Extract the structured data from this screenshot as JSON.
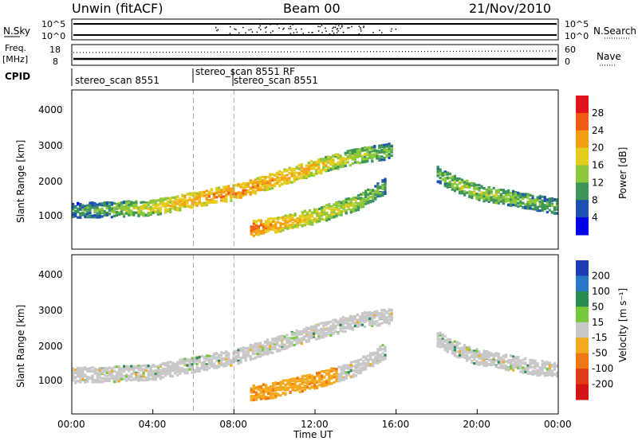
{
  "header": {
    "site": "Unwin (fitACF)",
    "beam": "Beam 00",
    "date": "21/Nov/2010"
  },
  "nsky_panel": {
    "left_label": "N.Sky",
    "right_label": "N.Search",
    "left_ticks": [
      "10^5",
      "10^0"
    ],
    "right_ticks": [
      "10^5",
      "10^0"
    ]
  },
  "freq_panel": {
    "left_label_line1": "Freq.",
    "left_label_line2": "[MHz]",
    "right_label": "Nave",
    "left_ticks": [
      "18",
      "8"
    ],
    "right_ticks": [
      "60",
      "0"
    ]
  },
  "cpid": {
    "label": "CPID",
    "segments": [
      {
        "start_hour": 0,
        "name": "stereo_scan 8551"
      },
      {
        "start_hour": 6,
        "name": "stereo_scan 8551 RF"
      },
      {
        "start_hour": 8,
        "name": "stereo_scan 8551"
      }
    ]
  },
  "chart_data": [
    {
      "type": "heatmap",
      "title": "",
      "xlabel": "",
      "ylabel": "Slant Range [km]",
      "yticks": [
        "1000",
        "2000",
        "3000",
        "4000"
      ],
      "ylim": [
        200,
        4600
      ],
      "xlim_hours": [
        0,
        24
      ],
      "colorbar_label": "Power [dB]",
      "colorbar_ticks": [
        "28",
        "24",
        "20",
        "16",
        "12",
        "8",
        "4"
      ],
      "colorbar_colors": [
        "#e0141e",
        "#f05a14",
        "#f5a014",
        "#e6cc1e",
        "#8cc83c",
        "#3c965a",
        "#1e50b4",
        "#0000e6"
      ],
      "bands": [
        {
          "x": [
            0,
            2,
            4,
            6,
            8,
            10,
            12,
            14,
            15.8
          ],
          "y_center": [
            1300,
            1330,
            1380,
            1600,
            1800,
            2150,
            2500,
            2800,
            2950
          ],
          "power_db": [
            8,
            12,
            16,
            20,
            22,
            20,
            18,
            14,
            10
          ]
        },
        {
          "x": [
            8.8,
            10,
            12,
            14,
            15.5
          ],
          "y_center": [
            800,
            900,
            1150,
            1500,
            2000
          ],
          "power_db": [
            24,
            20,
            16,
            14,
            10
          ]
        },
        {
          "x": [
            18,
            19,
            20,
            22,
            24
          ],
          "y_center": [
            2300,
            2000,
            1800,
            1600,
            1400
          ],
          "power_db": [
            10,
            14,
            14,
            12,
            10
          ]
        }
      ]
    },
    {
      "type": "heatmap",
      "title": "",
      "xlabel": "Time UT",
      "ylabel": "Slant Range [km]",
      "yticks": [
        "1000",
        "2000",
        "3000",
        "4000"
      ],
      "ylim": [
        200,
        4600
      ],
      "xlim_hours": [
        0,
        24
      ],
      "xticks": [
        "00:00",
        "04:00",
        "08:00",
        "12:00",
        "16:00",
        "20:00",
        "00:00"
      ],
      "colorbar_label": "Velocity [m s⁻¹]",
      "colorbar_ticks": [
        "200",
        "100",
        "50",
        "15",
        "-15",
        "-50",
        "-100",
        "-200"
      ],
      "colorbar_colors": [
        "#1e3cb4",
        "#2878c8",
        "#288c50",
        "#78c83c",
        "#c8c8c8",
        "#f5aa1e",
        "#f07814",
        "#e03c14",
        "#d21414"
      ]
    }
  ]
}
